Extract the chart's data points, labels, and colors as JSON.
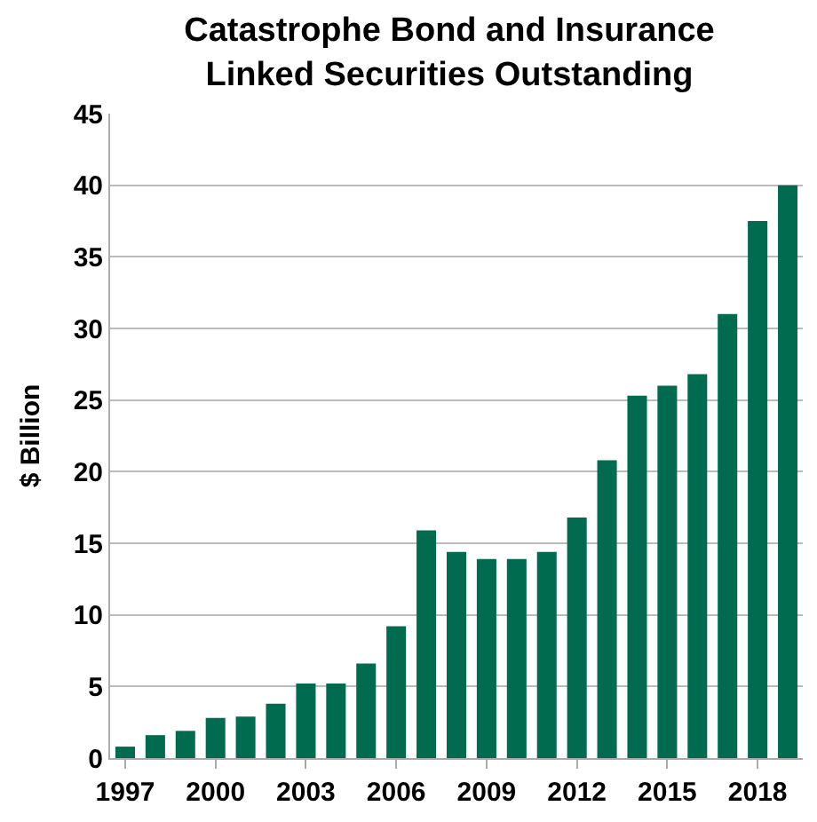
{
  "chart_data": {
    "type": "bar",
    "title": "Catastrophe Bond and Insurance\nLinked Securities Outstanding",
    "ylabel": "$ Billion",
    "categories": [
      "1997",
      null,
      null,
      "2000",
      null,
      null,
      "2003",
      null,
      null,
      "2006",
      null,
      null,
      "2009",
      null,
      null,
      "2012",
      null,
      null,
      "2015",
      null,
      null,
      "2018",
      null
    ],
    "values": [
      0.8,
      1.6,
      1.9,
      2.8,
      2.9,
      3.8,
      5.2,
      5.2,
      6.6,
      9.2,
      15.9,
      14.4,
      13.9,
      13.9,
      14.4,
      16.8,
      20.8,
      25.3,
      26,
      26.8,
      31,
      37.5,
      40
    ],
    "color": "#006b4e",
    "ylim": [
      0,
      45
    ],
    "yticks": [
      0,
      5,
      10,
      15,
      20,
      25,
      30,
      35,
      40,
      45
    ],
    "grid": "y"
  }
}
